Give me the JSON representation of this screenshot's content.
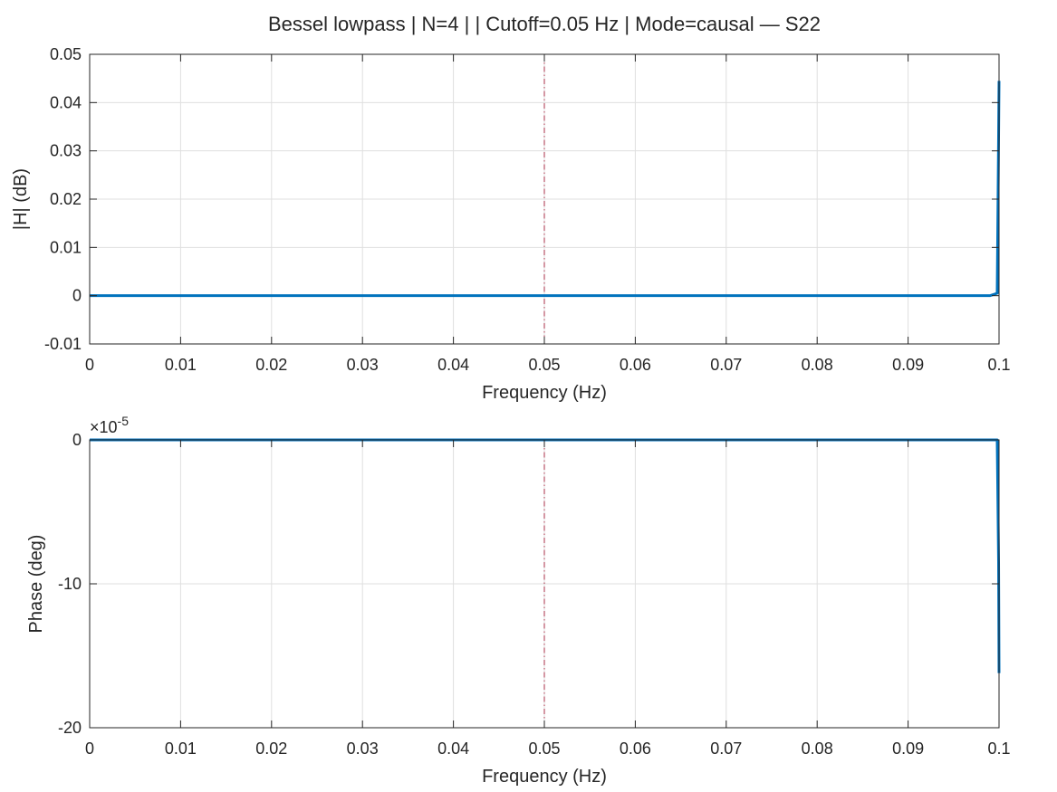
{
  "figure": {
    "title": "Bessel lowpass | N=4 |  | Cutoff=0.05 Hz | Mode=causal — S22"
  },
  "colors": {
    "series": "#0072BD",
    "cutoff_line": "#A2142F",
    "grid": "#DFDFDF",
    "axis": "#262626"
  },
  "chart_data": [
    {
      "type": "line",
      "panel": "magnitude",
      "xlabel": "Frequency (Hz)",
      "ylabel": "|H| (dB)",
      "xlim": [
        0,
        0.1
      ],
      "ylim": [
        -0.01,
        0.05
      ],
      "xticks": [
        "0",
        "0.01",
        "0.02",
        "0.03",
        "0.04",
        "0.05",
        "0.06",
        "0.07",
        "0.08",
        "0.09",
        "0.1"
      ],
      "yticks": [
        "-0.01",
        "0",
        "0.01",
        "0.02",
        "0.03",
        "0.04",
        "0.05"
      ],
      "grid": true,
      "cutoff_x": 0.05,
      "series": [
        {
          "x": [
            0,
            0.02,
            0.04,
            0.06,
            0.08,
            0.099,
            0.0998,
            0.09995,
            0.1
          ],
          "y": [
            0,
            0,
            0,
            0,
            0,
            0,
            0.0005,
            0.033,
            0.0445
          ]
        }
      ]
    },
    {
      "type": "line",
      "panel": "phase",
      "xlabel": "Frequency (Hz)",
      "ylabel": "Phase (deg)",
      "exponent_label": "×10",
      "exponent_power": "-5",
      "xlim": [
        0,
        0.1
      ],
      "ylim": [
        -20,
        0
      ],
      "xticks": [
        "0",
        "0.01",
        "0.02",
        "0.03",
        "0.04",
        "0.05",
        "0.06",
        "0.07",
        "0.08",
        "0.09",
        "0.1"
      ],
      "yticks": [
        "-20",
        "-10",
        "0"
      ],
      "grid": true,
      "cutoff_x": 0.05,
      "series": [
        {
          "x": [
            0,
            0.02,
            0.04,
            0.06,
            0.08,
            0.099,
            0.0998,
            0.09995,
            0.1
          ],
          "y": [
            0,
            0,
            0,
            0,
            0,
            0,
            0,
            -8.5,
            -16.2
          ]
        }
      ]
    }
  ]
}
